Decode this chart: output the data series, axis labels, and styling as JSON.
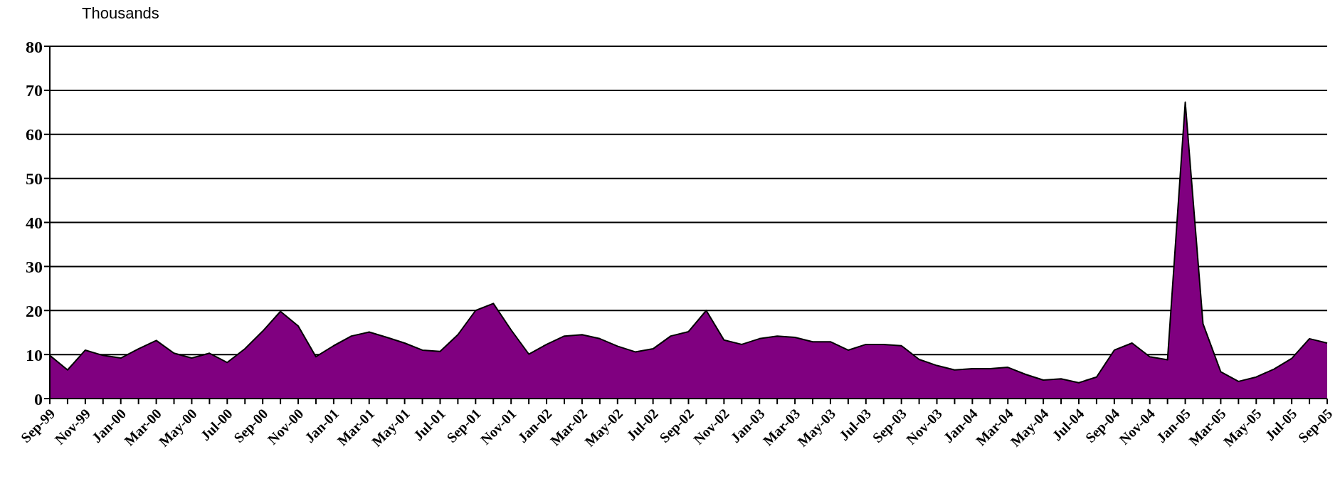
{
  "chart_data": {
    "type": "area",
    "ylabel": "Thousands",
    "categories": [
      "Sep-99",
      null,
      "Nov-99",
      null,
      "Jan-00",
      null,
      "Mar-00",
      null,
      "May-00",
      null,
      "Jul-00",
      null,
      "Sep-00",
      null,
      "Nov-00",
      null,
      "Jan-01",
      null,
      "Mar-01",
      null,
      "May-01",
      null,
      "Jul-01",
      null,
      "Sep-01",
      null,
      "Nov-01",
      null,
      "Jan-02",
      null,
      "Mar-02",
      null,
      "May-02",
      null,
      "Jul-02",
      null,
      "Sep-02",
      null,
      "Nov-02",
      null,
      "Jan-03",
      null,
      "Mar-03",
      null,
      "May-03",
      null,
      "Jul-03",
      null,
      "Sep-03",
      null,
      "Nov-03",
      null,
      "Jan-04",
      null,
      "Mar-04",
      null,
      "May-04",
      null,
      "Jul-04",
      null,
      "Sep-04",
      null,
      "Nov-04",
      null,
      "Jan-05",
      null,
      "Mar-05",
      null,
      "May-05",
      null,
      "Jul-05",
      null,
      "Sep-05"
    ],
    "series": [
      {
        "color": "#800080",
        "values": [
          9.8,
          6.5,
          11,
          9.8,
          9.2,
          11.3,
          13.2,
          10.3,
          9.2,
          10.3,
          8.2,
          11.3,
          15.3,
          19.8,
          16.5,
          9.5,
          12,
          14.2,
          15.1,
          13.9,
          12.6,
          11,
          10.7,
          14.5,
          20,
          21.6,
          15.6,
          10.1,
          12.3,
          14.2,
          14.5,
          13.6,
          11.9,
          10.6,
          11.3,
          14.2,
          15.2,
          20,
          13.3,
          12.3,
          13.6,
          14.2,
          13.9,
          12.9,
          12.9,
          11,
          12.3,
          12.3,
          12,
          8.9,
          7.5,
          6.5,
          6.8,
          6.8,
          7.1,
          5.5,
          4.2,
          4.5,
          3.6,
          4.9,
          11,
          12.6,
          9.5,
          8.8,
          67.3,
          17,
          6.1,
          3.9,
          4.9,
          6.7,
          9.1,
          13.6,
          12.6
        ]
      }
    ],
    "ylim": [
      0,
      80
    ],
    "yticks": [
      0,
      10,
      20,
      30,
      40,
      50,
      60,
      70,
      80
    ],
    "grid": "y",
    "legend": false
  }
}
